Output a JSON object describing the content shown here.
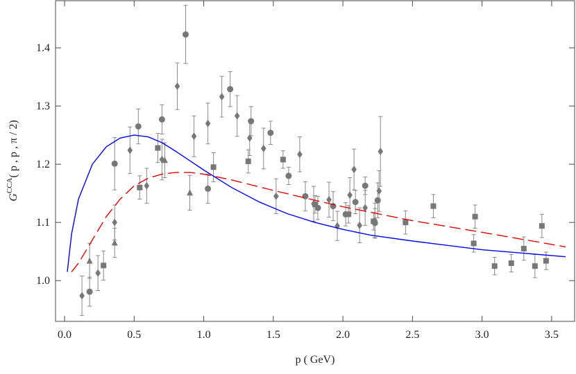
{
  "chart_data": {
    "type": "scatter",
    "xlabel": "p ( GeV)",
    "ylabel": {
      "base": "G",
      "sup": "CCA",
      "args": "( p , p , π / 2)"
    },
    "xlim": [
      -0.065,
      3.665
    ],
    "ylim": [
      0.93,
      1.481
    ],
    "xticks": [
      {
        "value": 0,
        "label": "0.0"
      },
      0.5,
      {
        "value": 1,
        "label": "1.0"
      },
      1.5,
      {
        "value": 2,
        "label": "2.0"
      },
      2.5,
      {
        "value": 3,
        "label": "3.0"
      },
      3.5
    ],
    "yticks": [
      {
        "value": 1,
        "label": "1.0"
      },
      1.1,
      1.2,
      1.3,
      1.4
    ],
    "series": [
      {
        "kind": "points",
        "marker": "diamond",
        "color": "#777777",
        "x": [
          0.125,
          0.24,
          0.36,
          0.47,
          0.59,
          0.81,
          0.7,
          0.93,
          1.03,
          1.13,
          1.24,
          1.33,
          1.43,
          1.52,
          1.69,
          1.79,
          1.9,
          1.96,
          2.05,
          2.08,
          2.12,
          2.16,
          2.23,
          2.27,
          2.26
        ],
        "values": [
          0.974,
          1.013,
          1.1,
          1.224,
          1.163,
          1.334,
          1.208,
          1.248,
          1.27,
          1.316,
          1.283,
          1.245,
          1.227,
          1.145,
          1.217,
          1.132,
          1.139,
          1.094,
          1.147,
          1.191,
          1.095,
          1.125,
          1.103,
          1.222,
          1.154
        ],
        "errors": [
          0.034,
          0.03,
          0.03,
          0.04,
          0.03,
          0.04,
          0.035,
          0.035,
          0.035,
          0.035,
          0.035,
          0.03,
          0.035,
          0.03,
          0.03,
          0.03,
          0.03,
          0.025,
          0.03,
          0.035,
          0.03,
          0.03,
          0.03,
          0.06,
          0.035
        ]
      },
      {
        "kind": "points",
        "marker": "circle",
        "color": "#777777",
        "x": [
          0.18,
          0.36,
          0.53,
          0.7,
          0.87,
          1.03,
          1.19,
          1.34,
          1.48,
          1.61,
          1.73,
          1.93,
          2.02,
          2.09,
          2.16,
          2.25,
          2.23,
          1.82
        ],
        "values": [
          0.981,
          1.201,
          1.265,
          1.277,
          1.423,
          1.158,
          1.329,
          1.274,
          1.254,
          1.18,
          1.145,
          1.128,
          1.114,
          1.135,
          1.163,
          1.138,
          1.099,
          1.125
        ],
        "errors": [
          0.025,
          0.045,
          0.03,
          0.025,
          0.05,
          0.025,
          0.03,
          0.025,
          0.02,
          0.015,
          0.025,
          0.025,
          0.02,
          0.02,
          0.015,
          0.03,
          0.025,
          0.02
        ]
      },
      {
        "kind": "points",
        "marker": "square",
        "color": "#777777",
        "x": [
          0.28,
          0.54,
          0.67,
          1.07,
          1.32,
          1.57,
          1.8,
          2.04,
          2.22,
          2.45,
          2.65,
          2.94,
          2.95,
          3.09,
          3.21,
          3.3,
          3.38,
          3.43,
          3.46
        ],
        "values": [
          1.026,
          1.16,
          1.228,
          1.195,
          1.205,
          1.208,
          1.131,
          1.114,
          1.102,
          1.1,
          1.128,
          1.064,
          1.11,
          1.025,
          1.03,
          1.055,
          1.025,
          1.094,
          1.034
        ],
        "errors": [
          0.025,
          0.02,
          0.025,
          0.025,
          0.02,
          0.015,
          0.015,
          0.015,
          0.015,
          0.02,
          0.02,
          0.015,
          0.02,
          0.015,
          0.015,
          0.02,
          0.02,
          0.02,
          0.015
        ]
      },
      {
        "kind": "points",
        "marker": "triangle",
        "color": "#777777",
        "x": [
          0.18,
          0.36,
          0.72,
          0.9
        ],
        "values": [
          1.034,
          1.065,
          1.207,
          1.151
        ],
        "errors": [
          0.03,
          0.025,
          0.03,
          0.03
        ]
      },
      {
        "kind": "line",
        "style": "solid",
        "color": "#0000ee",
        "x": [
          0.02,
          0.05,
          0.1,
          0.2,
          0.3,
          0.4,
          0.5,
          0.6,
          0.7,
          0.8,
          1.0,
          1.2,
          1.4,
          1.6,
          1.8,
          2.0,
          2.2,
          2.5,
          3.0,
          3.6
        ],
        "values": [
          1.015,
          1.08,
          1.14,
          1.2,
          1.23,
          1.245,
          1.25,
          1.247,
          1.237,
          1.222,
          1.19,
          1.16,
          1.135,
          1.115,
          1.1,
          1.088,
          1.078,
          1.068,
          1.053,
          1.041
        ]
      },
      {
        "kind": "line",
        "style": "dashed",
        "color": "#dd0000",
        "x": [
          0.05,
          0.1,
          0.2,
          0.3,
          0.4,
          0.5,
          0.6,
          0.7,
          0.8,
          0.9,
          1.0,
          1.2,
          1.5,
          1.8,
          2.0,
          2.5,
          3.0,
          3.6
        ],
        "values": [
          1.015,
          1.03,
          1.07,
          1.11,
          1.14,
          1.163,
          1.176,
          1.183,
          1.186,
          1.186,
          1.183,
          1.173,
          1.155,
          1.138,
          1.127,
          1.103,
          1.083,
          1.058
        ]
      }
    ]
  }
}
